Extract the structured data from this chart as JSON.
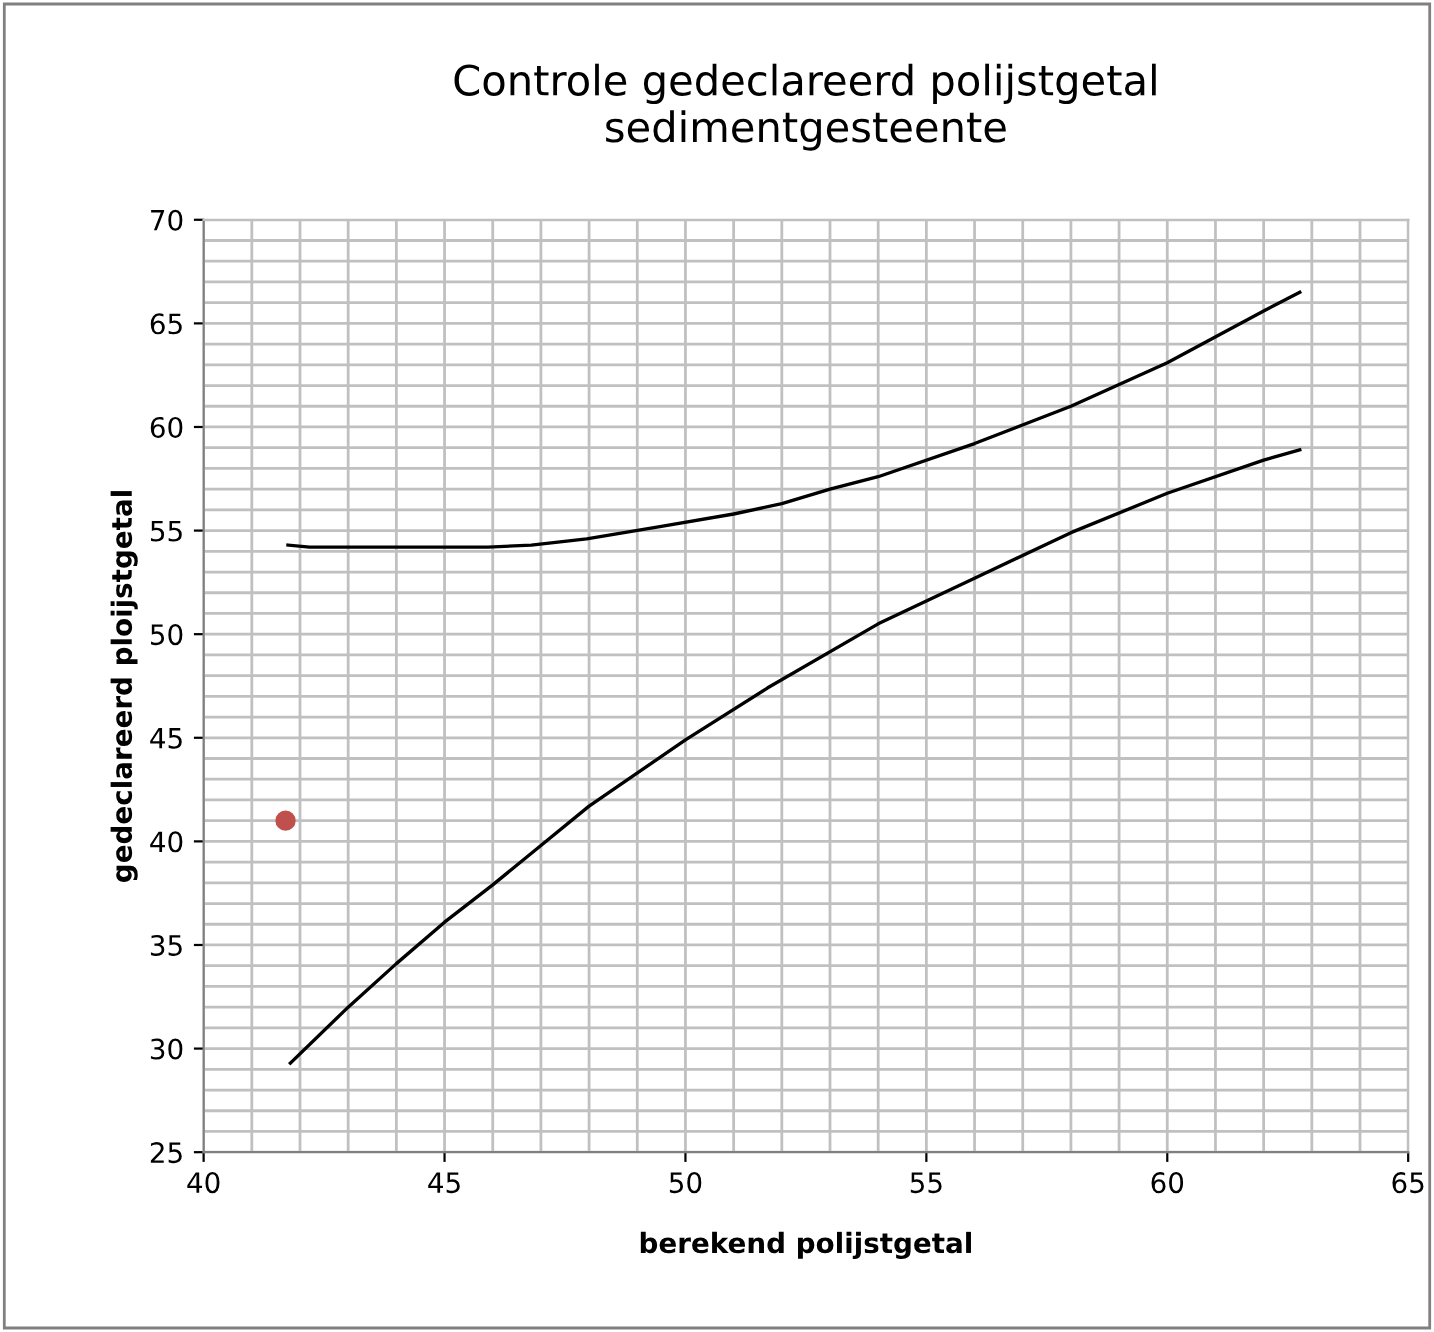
{
  "chart_data": {
    "type": "line",
    "title": "Controle gedeclareerd polijstgetal\nsedimentgesteente",
    "xlabel": "berekend polijstgetal",
    "ylabel": "gedeclareerd ploijstgetal",
    "xlim": [
      40,
      65
    ],
    "ylim": [
      25,
      70
    ],
    "xticks": [
      40,
      45,
      50,
      55,
      60,
      65
    ],
    "yticks": [
      25,
      30,
      35,
      40,
      45,
      50,
      55,
      60,
      65,
      70
    ],
    "grid": true,
    "marker": "none",
    "line_style": "solid",
    "series": [
      {
        "color": "#000000",
        "x": [
          41.75,
          42.2,
          44,
          45.9,
          46.8,
          47.95,
          49.5,
          51,
          52,
          53,
          54,
          56,
          58,
          60,
          62,
          62.75
        ],
        "values": [
          54.3,
          54.2,
          54.2,
          54.2,
          54.3,
          54.6,
          55.2,
          55.8,
          56.3,
          57.0,
          57.6,
          59.2,
          61.0,
          63.1,
          65.6,
          66.5
        ]
      },
      {
        "color": "#000000",
        "x": [
          41.8,
          43,
          44,
          45,
          46,
          47,
          48,
          50,
          51.7,
          54,
          56,
          58,
          60,
          62,
          62.75
        ],
        "values": [
          29.3,
          32.0,
          34.1,
          36.1,
          37.9,
          39.8,
          41.7,
          44.9,
          47.4,
          50.5,
          52.7,
          54.9,
          56.8,
          58.4,
          58.9
        ]
      },
      {
        "type": "scatter",
        "color": "#c0504d",
        "marker": "circle",
        "x": [
          41.7
        ],
        "values": [
          41.0
        ]
      }
    ]
  }
}
